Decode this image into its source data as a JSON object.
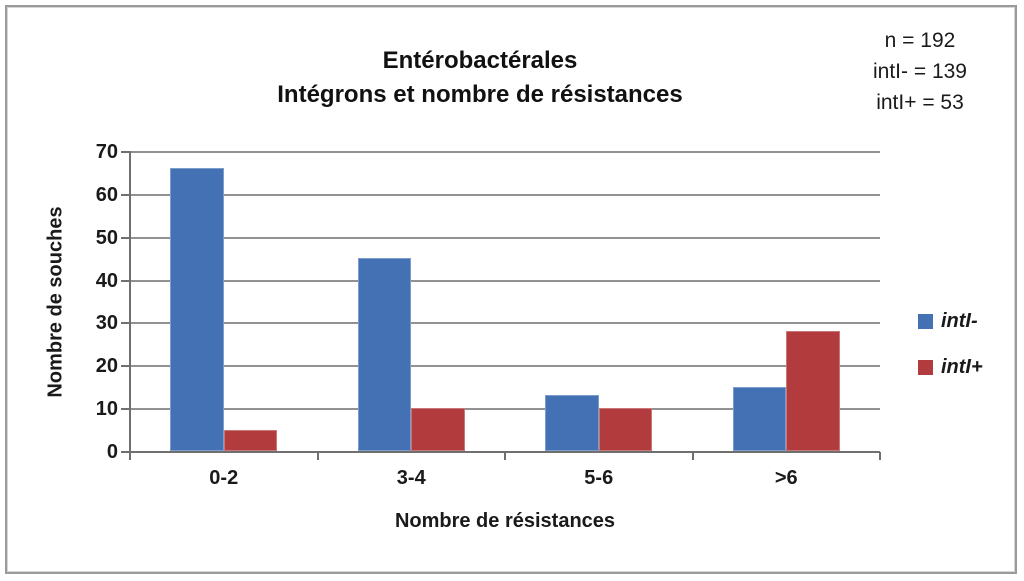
{
  "chart_data": {
    "type": "bar",
    "title_lines": [
      "Entérobactérales",
      "Intégrons et nombre de résistances"
    ],
    "annotation_lines": [
      "n = 192",
      "intI- = 139",
      "intI+ = 53"
    ],
    "categories": [
      "0-2",
      "3-4",
      "5-6",
      ">6"
    ],
    "series": [
      {
        "name": "intI-",
        "color": "#4471B3",
        "values": [
          66,
          45,
          13,
          15
        ]
      },
      {
        "name": "intI+",
        "color": "#B23B3E",
        "values": [
          5,
          10,
          10,
          28
        ]
      }
    ],
    "xlabel": "Nombre de résistances",
    "ylabel": "Nombre de souches",
    "ylim": [
      0,
      70
    ],
    "ytick_step": 10,
    "grid": true,
    "legend_position": "right",
    "gap_ratio": 1.5,
    "grid_color": "#919191",
    "axis_color": "#6f6f6f"
  }
}
